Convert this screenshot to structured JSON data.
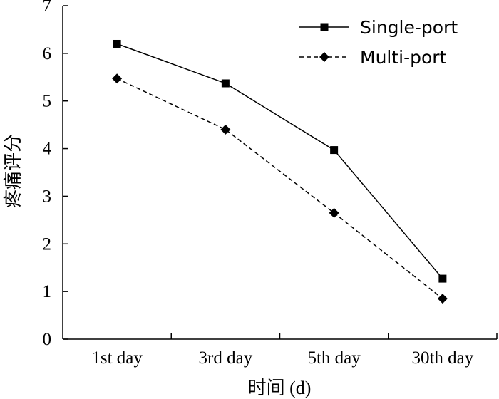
{
  "chart_data": {
    "type": "line",
    "categories": [
      "1st day",
      "3rd day",
      "5th day",
      "30th day"
    ],
    "series": [
      {
        "name": "Single-port",
        "values": [
          6.2,
          5.37,
          3.97,
          1.27
        ],
        "marker": "square",
        "line_style": "solid",
        "color": "#000000"
      },
      {
        "name": "Multi-port",
        "values": [
          5.47,
          4.4,
          2.65,
          0.85
        ],
        "marker": "diamond",
        "line_style": "dashed",
        "color": "#000000"
      }
    ],
    "ylabel": "疼痛评分",
    "xlabel": "时间 (d)",
    "ylim": [
      0,
      7
    ],
    "yticks": [
      "0",
      "1",
      "2",
      "3",
      "4",
      "5",
      "6",
      "7"
    ],
    "grid": false,
    "legend_position": "top-right"
  }
}
